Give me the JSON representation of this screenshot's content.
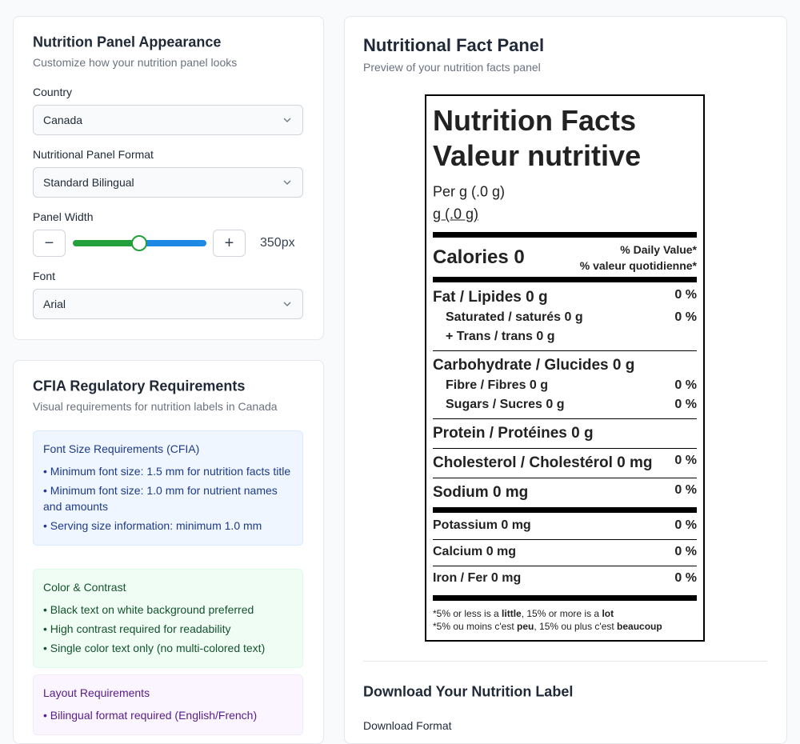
{
  "appearance": {
    "title": "Nutrition Panel Appearance",
    "subtitle": "Customize how your nutrition panel looks",
    "country": {
      "label": "Country",
      "value": "Canada"
    },
    "format": {
      "label": "Nutritional Panel Format",
      "value": "Standard Bilingual"
    },
    "width": {
      "label": "Panel Width",
      "value": "350px"
    },
    "font": {
      "label": "Font",
      "value": "Arial"
    }
  },
  "requirements": {
    "title": "CFIA Regulatory Requirements",
    "subtitle": "Visual requirements for nutrition labels in Canada",
    "sections": [
      {
        "title": "Font Size Requirements (CFIA)",
        "items": [
          "• Minimum font size: 1.5 mm for nutrition facts title",
          "• Minimum font size: 1.0 mm for nutrient names and amounts",
          "• Serving size information: minimum 1.0 mm"
        ]
      },
      {
        "title": "Color & Contrast",
        "items": [
          "• Black text on white background preferred",
          "• High contrast required for readability",
          "• Single color text only (no multi-colored text)"
        ]
      },
      {
        "title": "Layout Requirements",
        "items": [
          "• Bilingual format required (English/French)"
        ]
      }
    ]
  },
  "preview": {
    "title": "Nutritional Fact Panel",
    "subtitle": "Preview of your nutrition facts panel",
    "label": {
      "title_en": "Nutrition Facts",
      "title_fr": "Valeur nutritive",
      "serving_1": "Per g (.0 g)",
      "serving_2": "g (.0 g)",
      "calories": "Calories 0",
      "dv_en": "% Daily Value*",
      "dv_fr": "% valeur quotidienne*",
      "nutrients": [
        {
          "name": "Fat / Lipides 0 g",
          "dv": "0 %"
        },
        {
          "name": "Saturated / saturés 0 g",
          "dv": "0 %"
        },
        {
          "name": "+ Trans / trans 0 g"
        },
        {
          "name": "Carbohydrate / Glucides 0 g"
        },
        {
          "name": "Fibre / Fibres 0 g",
          "dv": "0 %"
        },
        {
          "name": "Sugars / Sucres 0 g",
          "dv": "0 %"
        },
        {
          "name": "Protein / Protéines 0 g"
        },
        {
          "name": "Cholesterol / Cholestérol 0 mg",
          "dv": "0 %"
        },
        {
          "name": "Sodium 0 mg",
          "dv": "0 %"
        },
        {
          "name": "Potassium 0 mg",
          "dv": "0 %"
        },
        {
          "name": "Calcium 0 mg",
          "dv": "0 %"
        },
        {
          "name": "Iron / Fer 0 mg",
          "dv": "0 %"
        }
      ],
      "footnote_en": [
        "*5% or less is a ",
        "little",
        ", 15% or more is a ",
        "lot"
      ],
      "footnote_fr": [
        "*5% ou moins c'est ",
        "peu",
        ", 15% ou plus c'est ",
        "beaucoup"
      ]
    }
  },
  "download": {
    "title": "Download Your Nutrition Label",
    "format_label": "Download Format"
  }
}
